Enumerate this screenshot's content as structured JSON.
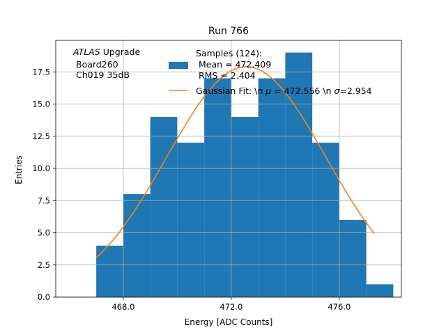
{
  "chart_data": {
    "type": "bar",
    "title": "Run 766",
    "xlabel": "Energy [ADC Counts]",
    "ylabel": "Entries",
    "xlim": [
      465.5,
      478.3
    ],
    "ylim": [
      0,
      19.95
    ],
    "x_ticks": [
      468.0,
      472.0,
      476.0
    ],
    "y_ticks": [
      0.0,
      2.5,
      5.0,
      7.5,
      10.0,
      12.5,
      15.0,
      17.5
    ],
    "grid": true,
    "annotation": {
      "line1_italic": "ATLAS",
      "line1_rest": " Upgrade",
      "line2": "Board260",
      "line3": "Ch019 35dB"
    },
    "histogram": {
      "name": "Samples (124):\n Mean = 472.409\n RMS = 2.404",
      "color": "#1f77b4",
      "bins": [
        {
          "x0": 467.0,
          "x1": 468.0,
          "count": 4
        },
        {
          "x0": 468.0,
          "x1": 469.0,
          "count": 8
        },
        {
          "x0": 469.0,
          "x1": 470.0,
          "count": 14
        },
        {
          "x0": 470.0,
          "x1": 471.0,
          "count": 12
        },
        {
          "x0": 471.0,
          "x1": 472.0,
          "count": 17
        },
        {
          "x0": 472.0,
          "x1": 473.0,
          "count": 14
        },
        {
          "x0": 473.0,
          "x1": 474.0,
          "count": 17
        },
        {
          "x0": 474.0,
          "x1": 475.0,
          "count": 19
        },
        {
          "x0": 475.0,
          "x1": 476.0,
          "count": 12
        },
        {
          "x0": 476.0,
          "x1": 477.0,
          "count": 6
        },
        {
          "x0": 477.0,
          "x1": 478.0,
          "count": 1
        }
      ]
    },
    "fit": {
      "name": "Gaussian Fit: \\n μ = 472.556 \\n σ=2.954",
      "color": "#ff7f0e",
      "amplitude": 17.9,
      "mu": 472.556,
      "sigma": 2.954,
      "x_range": [
        467.0,
        477.3
      ]
    },
    "legend": {
      "location": "upper-right",
      "hist_lines": [
        "Samples (124):",
        " Mean = 472.409",
        " RMS = 2.404"
      ],
      "fit_label_prefix": "Gaussian Fit: \\n ",
      "fit_label_mu": "μ",
      "fit_label_mid": " = 472.556 \\n ",
      "fit_label_sigma": "σ",
      "fit_label_suffix": "=2.954"
    }
  }
}
